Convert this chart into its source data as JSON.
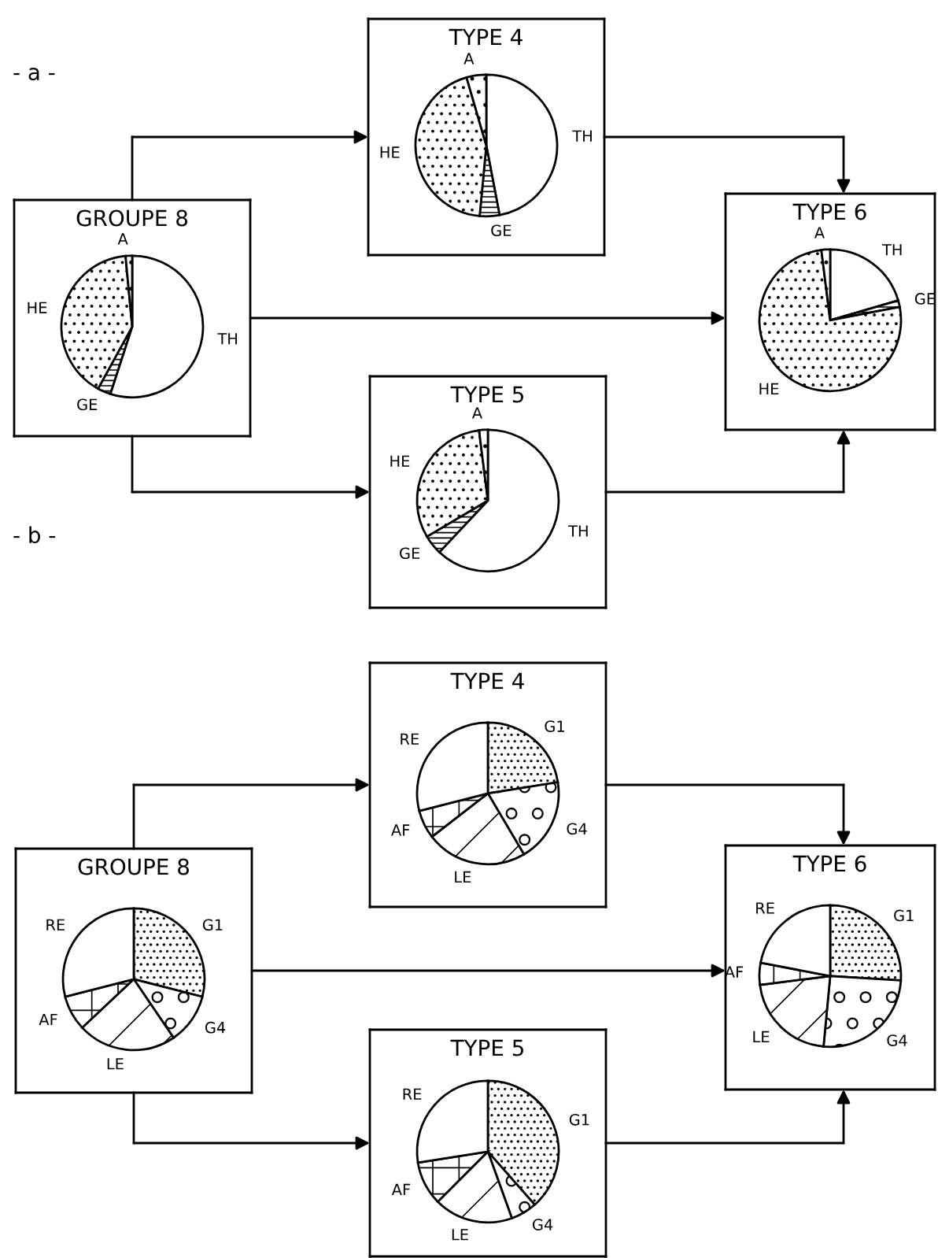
{
  "chart_data": [
    {
      "type": "pie",
      "title": "TYPE 4",
      "categories": [
        "TH",
        "GE",
        "HE",
        "A"
      ],
      "values": [
        47,
        4.5,
        44,
        4.5
      ]
    },
    {
      "type": "pie",
      "title": "GROUPE 8",
      "annotations": [
        "- a -"
      ],
      "categories": [
        "TH",
        "GE",
        "HE",
        "A"
      ],
      "values": [
        55,
        3,
        40.5,
        1.5
      ]
    },
    {
      "type": "pie",
      "title": "TYPE 6",
      "categories": [
        "TH",
        "GE",
        "HE",
        "A"
      ],
      "values": [
        20.5,
        1.5,
        76,
        2
      ]
    },
    {
      "type": "pie",
      "title": "TYPE 5",
      "categories": [
        "TH",
        "GE",
        "HE",
        "A"
      ],
      "values": [
        62,
        4.5,
        31.5,
        2
      ]
    },
    {
      "type": "pie",
      "title": "TYPE 4",
      "annotations": [
        "- b -"
      ],
      "categories": [
        "G1",
        "G4",
        "LE",
        "AF",
        "RE"
      ],
      "values": [
        22.5,
        19,
        23,
        6.5,
        29
      ]
    },
    {
      "type": "pie",
      "title": "GROUPE 8",
      "categories": [
        "G1",
        "G4",
        "LE",
        "AF",
        "RE"
      ],
      "values": [
        29,
        11.5,
        22.5,
        8,
        29
      ]
    },
    {
      "type": "pie",
      "title": "TYPE 6",
      "categories": [
        "G1",
        "G4",
        "LE",
        "AF",
        "RE"
      ],
      "values": [
        26,
        25.5,
        21.5,
        5,
        22
      ]
    },
    {
      "type": "pie",
      "title": "TYPE 5",
      "categories": [
        "G1",
        "G4",
        "LE",
        "AF",
        "RE"
      ],
      "values": [
        38.5,
        6,
        18,
        10,
        27.5
      ]
    }
  ]
}
